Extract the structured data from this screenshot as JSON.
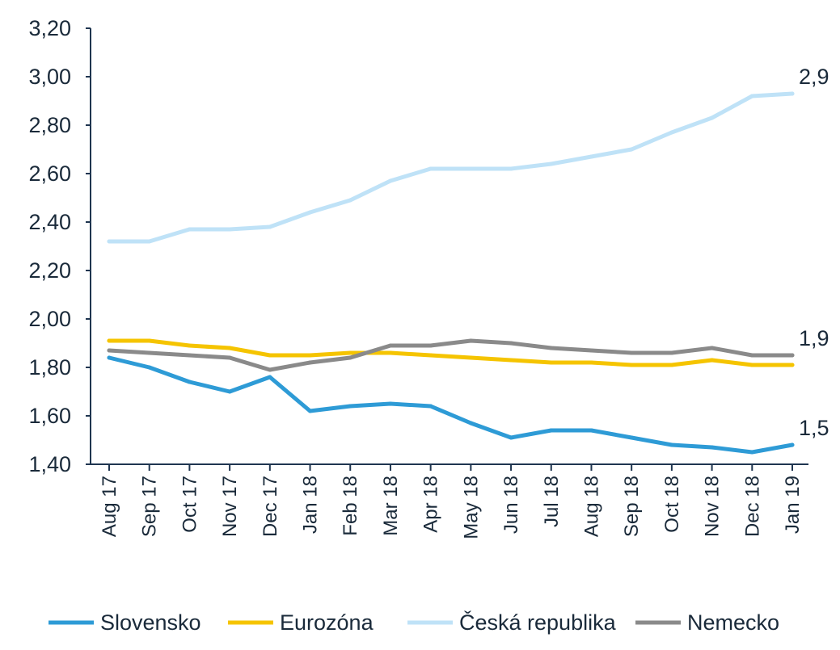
{
  "chart_data": {
    "type": "line",
    "title": "",
    "xlabel": "",
    "ylabel": "",
    "categories": [
      "Aug 17",
      "Sep 17",
      "Oct 17",
      "Nov 17",
      "Dec 17",
      "Jan 18",
      "Feb 18",
      "Mar 18",
      "Apr 18",
      "May 18",
      "Jun 18",
      "Jul 18",
      "Aug 18",
      "Sep 18",
      "Oct 18",
      "Nov 18",
      "Dec 18",
      "Jan 19"
    ],
    "ylim": [
      1.4,
      3.2
    ],
    "yticks": [
      "1,40",
      "1,60",
      "1,80",
      "2,00",
      "2,20",
      "2,40",
      "2,60",
      "2,80",
      "3,00",
      "3,20"
    ],
    "grid": false,
    "legend_position": "bottom",
    "series": [
      {
        "name": "Slovensko",
        "color": "#2e9bd6",
        "values": [
          1.84,
          1.8,
          1.74,
          1.7,
          1.76,
          1.62,
          1.64,
          1.65,
          1.64,
          1.57,
          1.51,
          1.54,
          1.54,
          1.51,
          1.48,
          1.47,
          1.45,
          1.48
        ],
        "end_label": "1,5"
      },
      {
        "name": "Eurozóna",
        "color": "#f5c400",
        "values": [
          1.91,
          1.91,
          1.89,
          1.88,
          1.85,
          1.85,
          1.86,
          1.86,
          1.85,
          1.84,
          1.83,
          1.82,
          1.82,
          1.81,
          1.81,
          1.83,
          1.81,
          1.81
        ],
        "end_label": ""
      },
      {
        "name": "Česká republika",
        "color": "#bfe2f7",
        "values": [
          2.32,
          2.32,
          2.37,
          2.37,
          2.38,
          2.44,
          2.49,
          2.57,
          2.62,
          2.62,
          2.62,
          2.64,
          2.67,
          2.7,
          2.77,
          2.83,
          2.92,
          2.93
        ],
        "end_label": "2,9"
      },
      {
        "name": "Nemecko",
        "color": "#8a8a8a",
        "values": [
          1.87,
          1.86,
          1.85,
          1.84,
          1.79,
          1.82,
          1.84,
          1.89,
          1.89,
          1.91,
          1.9,
          1.88,
          1.87,
          1.86,
          1.86,
          1.88,
          1.85,
          1.85
        ],
        "end_label": "1,9"
      }
    ]
  }
}
